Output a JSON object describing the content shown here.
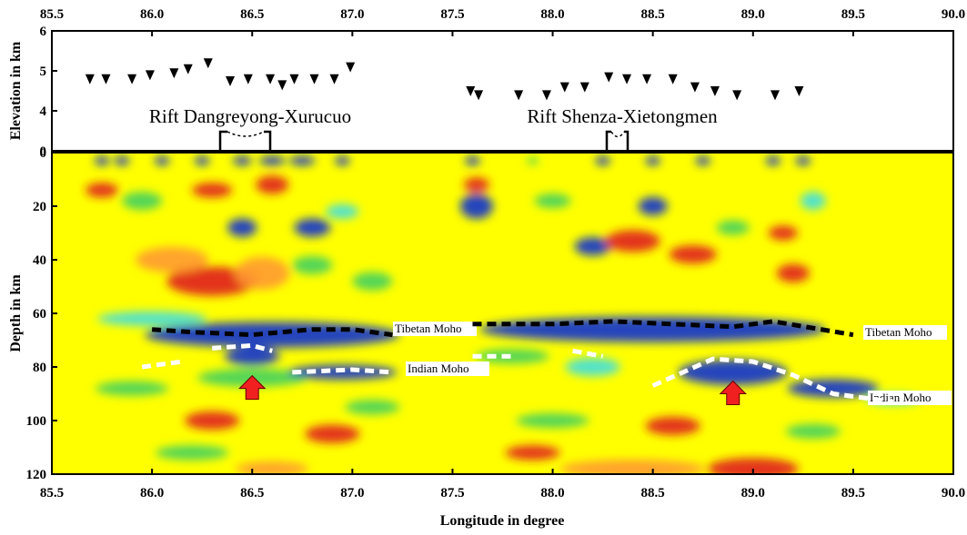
{
  "chart_data": [
    {
      "type": "scatter",
      "ylabel": "Elevation in km",
      "marker": "triangle-down",
      "color": "#000000",
      "xlim": [
        85.5,
        90.0
      ],
      "xticks": [
        85.5,
        {
          "value": 86,
          "label": "86.0"
        },
        86.5,
        {
          "value": 87,
          "label": "87.0"
        },
        87.5,
        {
          "value": 88,
          "label": "88.0"
        },
        88.5,
        {
          "value": 89,
          "label": "89.0"
        },
        89.5,
        {
          "value": 90,
          "label": "90.0"
        }
      ],
      "ylim": [
        0,
        6
      ],
      "yticks": [
        0,
        4,
        5,
        6
      ],
      "x": [
        85.69,
        85.77,
        85.9,
        85.99,
        86.11,
        86.18,
        86.28,
        86.39,
        86.48,
        86.59,
        86.65,
        86.71,
        86.81,
        86.91,
        86.99,
        87.59,
        87.63,
        87.83,
        87.97,
        88.06,
        88.16,
        88.28,
        88.37,
        88.47,
        88.6,
        88.71,
        88.81,
        88.92,
        89.11,
        89.23
      ],
      "values": [
        4.8,
        4.8,
        4.8,
        4.9,
        4.95,
        5.05,
        5.2,
        4.75,
        4.8,
        4.8,
        4.65,
        4.8,
        4.8,
        4.8,
        5.1,
        4.5,
        4.4,
        4.4,
        4.4,
        4.6,
        4.6,
        4.85,
        4.8,
        4.8,
        4.8,
        4.6,
        4.5,
        4.4,
        4.4,
        4.5
      ],
      "annotations": [
        {
          "text": "Rift Dangreyong-Xurucuo"
        },
        {
          "text": "Rift Shenza-Xietongmen"
        }
      ]
    },
    {
      "type": "line",
      "xlabel": "Longitude in degree",
      "ylabel": "Depth in km",
      "y_inverted": true,
      "xlim": [
        85.5,
        90.0
      ],
      "xticks": [
        85.5,
        {
          "value": 86,
          "label": "86.0"
        },
        86.5,
        {
          "value": 87,
          "label": "87.0"
        },
        87.5,
        {
          "value": 88,
          "label": "88.0"
        },
        88.5,
        {
          "value": 89,
          "label": "89.0"
        },
        89.5,
        {
          "value": 90,
          "label": "90.0"
        }
      ],
      "ylim": [
        0,
        120
      ],
      "yticks": [
        0,
        20,
        40,
        60,
        80,
        100,
        120
      ],
      "series": [
        {
          "color": "#000000",
          "x": [
            86.0,
            86.2,
            86.5,
            86.8,
            87.0,
            87.2
          ],
          "values": [
            66,
            67,
            68,
            66,
            66,
            68
          ]
        },
        {
          "color": "#000000",
          "x": [
            87.6,
            88.0,
            88.3,
            88.6,
            88.9,
            89.1,
            89.5
          ],
          "values": [
            64,
            64,
            63,
            64,
            65,
            63,
            68
          ]
        },
        {
          "color": "#ffffff",
          "x": [
            85.95,
            86.15,
            86.2,
            86.3,
            86.5,
            86.6,
            86.65,
            86.7,
            87.0,
            87.2
          ],
          "values": [
            80,
            78,
            null,
            73,
            72,
            74,
            null,
            82,
            81,
            82
          ]
        },
        {
          "color": "#ffffff",
          "x": [
            87.6,
            87.8,
            87.9,
            88.1,
            88.25,
            88.4,
            88.5,
            88.8,
            89.0,
            89.2,
            89.4,
            89.7
          ],
          "values": [
            76,
            76,
            null,
            74,
            76,
            null,
            87,
            77,
            78,
            83,
            90,
            93
          ]
        }
      ],
      "annotations": [
        {
          "text": "Tibetan Moho"
        },
        {
          "text": "Tibetan Moho"
        },
        {
          "text": "Indian Moho"
        },
        {
          "text": "Indian Moho"
        }
      ]
    }
  ]
}
